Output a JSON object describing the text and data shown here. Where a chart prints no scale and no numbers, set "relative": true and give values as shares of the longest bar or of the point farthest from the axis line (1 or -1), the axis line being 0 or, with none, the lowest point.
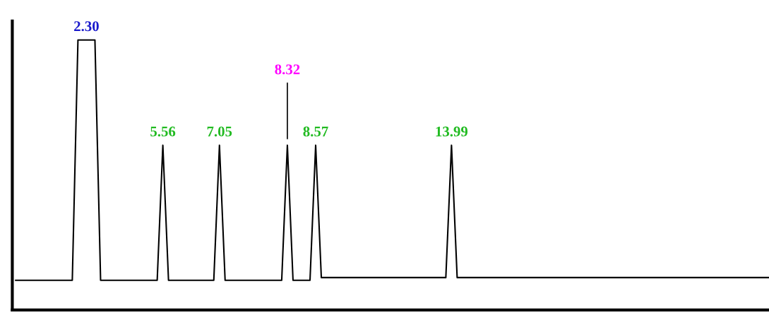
{
  "chart_data": {
    "type": "line",
    "relative": true,
    "categories": [
      null,
      null,
      null,
      null,
      null,
      null,
      null,
      null,
      null,
      null,
      null,
      null,
      null,
      null,
      null,
      null,
      null,
      null,
      null,
      null,
      null,
      null,
      null,
      null,
      null,
      null,
      null,
      null,
      null,
      null,
      null,
      null,
      null,
      null,
      null,
      null,
      null,
      null,
      null,
      null,
      null,
      null,
      null,
      null,
      null,
      null,
      null,
      null,
      null,
      null,
      null,
      null,
      null,
      null,
      null,
      null,
      null,
      null,
      null,
      null,
      null,
      null,
      null,
      null,
      null,
      null,
      null,
      null,
      null,
      null,
      null,
      null,
      null,
      null,
      null,
      null,
      null,
      null,
      null,
      null,
      null,
      null,
      null,
      null,
      null,
      null,
      null,
      null,
      null,
      null,
      null,
      null,
      null,
      null,
      null,
      null,
      null,
      null,
      null,
      null,
      null,
      null,
      null,
      null,
      null,
      null,
      null,
      null,
      null,
      null,
      null,
      null,
      null,
      null,
      null,
      null,
      null,
      null,
      null,
      null,
      null,
      null,
      null,
      null,
      null,
      null,
      null,
      null,
      null,
      null,
      null,
      null,
      null,
      null
    ],
    "series": [
      {
        "color": "#000000",
        "values": [
          0.11,
          0.11,
          0.11,
          0.11,
          0.11,
          0.11,
          0.11,
          0.11,
          0.11,
          0.11,
          0.11,
          1,
          1,
          1,
          1,
          0.11,
          0.11,
          0.11,
          0.11,
          0.11,
          0.11,
          0.11,
          0.11,
          0.11,
          0.11,
          0.11,
          0.61,
          0.11,
          0.11,
          0.11,
          0.11,
          0.11,
          0.11,
          0.11,
          0.11,
          0.11,
          0.61,
          0.11,
          0.11,
          0.11,
          0.11,
          0.11,
          0.11,
          0.11,
          0.11,
          0.11,
          0.11,
          0.11,
          0.61,
          0.11,
          0.11,
          0.11,
          0.11,
          0.61,
          0.12,
          0.12,
          0.12,
          0.12,
          0.12,
          0.12,
          0.12,
          0.12,
          0.12,
          0.12,
          0.12,
          0.12,
          0.12,
          0.12,
          0.12,
          0.12,
          0.12,
          0.12,
          0.12,
          0.12,
          0.12,
          0.12,
          0.12,
          0.61,
          0.12,
          0.12,
          0.12,
          0.12,
          0.12,
          0.12,
          0.12,
          0.12,
          0.12,
          0.12,
          0.12,
          0.12,
          0.12,
          0.12,
          0.12,
          0.12,
          0.12,
          0.12,
          0.12,
          0.12,
          0.12,
          0.12,
          0.12,
          0.12,
          0.12,
          0.12,
          0.12,
          0.12,
          0.12,
          0.12,
          0.12,
          0.12,
          0.12,
          0.12,
          0.12,
          0.12,
          0.12,
          0.12,
          0.12,
          0.12,
          0.12,
          0.12,
          0.12,
          0.12,
          0.12,
          0.12,
          0.12,
          0.12,
          0.12,
          0.12,
          0.12,
          0.12,
          0.12,
          0.12,
          0.12,
          0.12
        ]
      }
    ],
    "annotations": [
      "2.30",
      "5.56",
      "7.05",
      "8.32",
      "8.57",
      "13.99"
    ],
    "marker": "none",
    "line_style": "solid",
    "grid": false,
    "legend": false
  }
}
